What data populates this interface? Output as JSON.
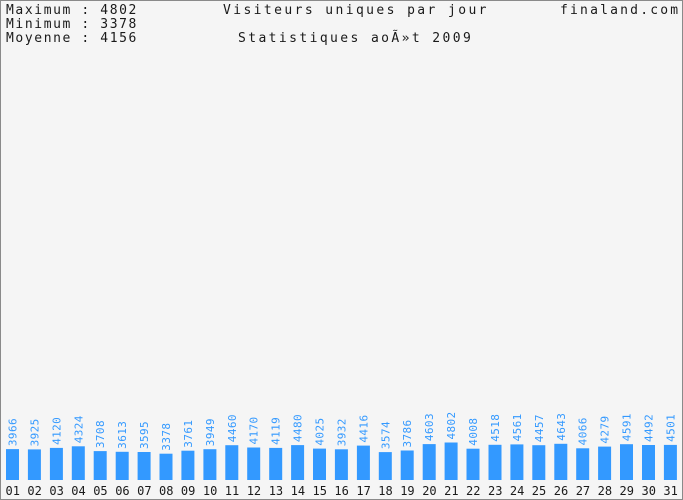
{
  "header": {
    "max_label": "Maximum : 4802",
    "min_label": "Minimum : 3378",
    "avg_label": "Moyenne : 4156",
    "title": "Visiteurs uniques par jour",
    "subtitle": "Statistiques aoÃ»t 2009",
    "site": "finaland.com"
  },
  "colors": {
    "bar": "#3399ff",
    "background": "#f5f5f5"
  },
  "chart_data": {
    "type": "bar",
    "title": "Visiteurs uniques par jour",
    "subtitle": "Statistiques aoÃ»t 2009",
    "categories": [
      "01",
      "02",
      "03",
      "04",
      "05",
      "06",
      "07",
      "08",
      "09",
      "10",
      "11",
      "12",
      "13",
      "14",
      "15",
      "16",
      "17",
      "18",
      "19",
      "20",
      "21",
      "22",
      "23",
      "24",
      "25",
      "26",
      "27",
      "28",
      "29",
      "30",
      "31"
    ],
    "values": [
      3966,
      3925,
      4120,
      4324,
      3708,
      3613,
      3595,
      3378,
      3761,
      3949,
      4460,
      4170,
      4119,
      4480,
      4025,
      3932,
      4416,
      3574,
      3786,
      4603,
      4802,
      4008,
      4518,
      4561,
      4457,
      4643,
      4066,
      4279,
      4591,
      4492,
      4501
    ],
    "max": 4802,
    "min": 3378,
    "mean": 4156,
    "grid": false,
    "legend": "none"
  }
}
